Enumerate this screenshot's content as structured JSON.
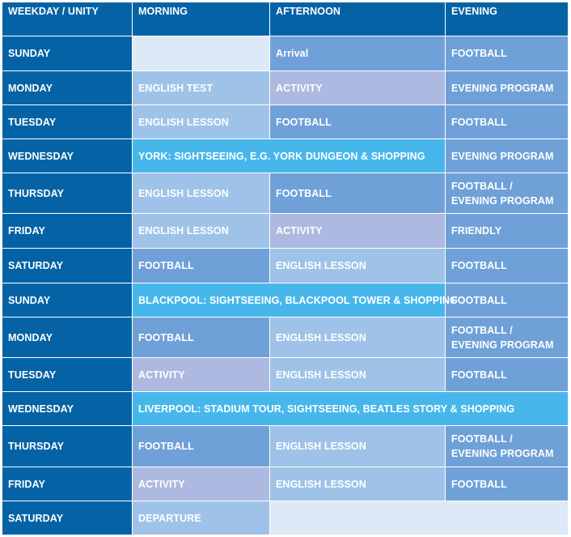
{
  "header": {
    "col1": "WEEKDAY / UNITY",
    "col2": "MORNING",
    "col3": "AFTERNOON",
    "col4": "EVENING"
  },
  "rows": [
    {
      "day": "SUNDAY",
      "morning": "",
      "afternoon": "Arrival",
      "evening": "FOOTBALL"
    },
    {
      "day": "MONDAY",
      "morning": "ENGLISH TEST",
      "afternoon": "ACTIVITY",
      "evening": "EVENING PROGRAM"
    },
    {
      "day": "TUESDAY",
      "morning": "ENGLISH LESSON",
      "afternoon": "FOOTBALL",
      "evening": "FOOTBALL"
    },
    {
      "day": "WEDNESDAY",
      "excursion": "YORK: SIGHTSEEING, E.G. YORK DUNGEON & SHOPPING",
      "evening": "EVENING PROGRAM"
    },
    {
      "day": "THURSDAY",
      "morning": "ENGLISH LESSON",
      "afternoon": "FOOTBALL",
      "evening_line1": "FOOTBALL /",
      "evening_line2": "EVENING PROGRAM"
    },
    {
      "day": "FRIDAY",
      "morning": "ENGLISH LESSON",
      "afternoon": "ACTIVITY",
      "evening": "FRIENDLY"
    },
    {
      "day": "SATURDAY",
      "morning": "FOOTBALL",
      "afternoon": "ENGLISH LESSON",
      "evening": "FOOTBALL"
    },
    {
      "day": "SUNDAY",
      "excursion": "BLACKPOOL: SIGHTSEEING, BLACKPOOL TOWER & SHOPPING",
      "evening": "FOOTBALL"
    },
    {
      "day": "MONDAY",
      "morning": "FOOTBALL",
      "afternoon": "ENGLISH LESSON",
      "evening_line1": "FOOTBALL /",
      "evening_line2": "EVENING PROGRAM"
    },
    {
      "day": "TUESDAY",
      "morning": "ACTIVITY",
      "afternoon": "ENGLISH LESSON",
      "evening": "FOOTBALL"
    },
    {
      "day": "WEDNESDAY",
      "excursion": "LIVERPOOL: STADIUM TOUR, SIGHTSEEING, BEATLES STORY & SHOPPING"
    },
    {
      "day": "THURSDAY",
      "morning": "FOOTBALL",
      "afternoon": "ENGLISH LESSON",
      "evening_line1": "FOOTBALL /",
      "evening_line2": "EVENING PROGRAM"
    },
    {
      "day": "FRIDAY",
      "morning": "ACTIVITY",
      "afternoon": "ENGLISH LESSON",
      "evening": "FOOTBALL"
    },
    {
      "day": "SATURDAY",
      "morning": "DEPARTURE",
      "afternoon": "",
      "evening": ""
    }
  ],
  "colors": {
    "day": "#0563a5",
    "dark_blue": "#1e6fb0",
    "mid_blue": "#6fa1d8",
    "light_blue": "#9fc3e8",
    "lavender": "#adb9e0",
    "cyan": "#47b7eb",
    "pale": "#dde9f6"
  }
}
